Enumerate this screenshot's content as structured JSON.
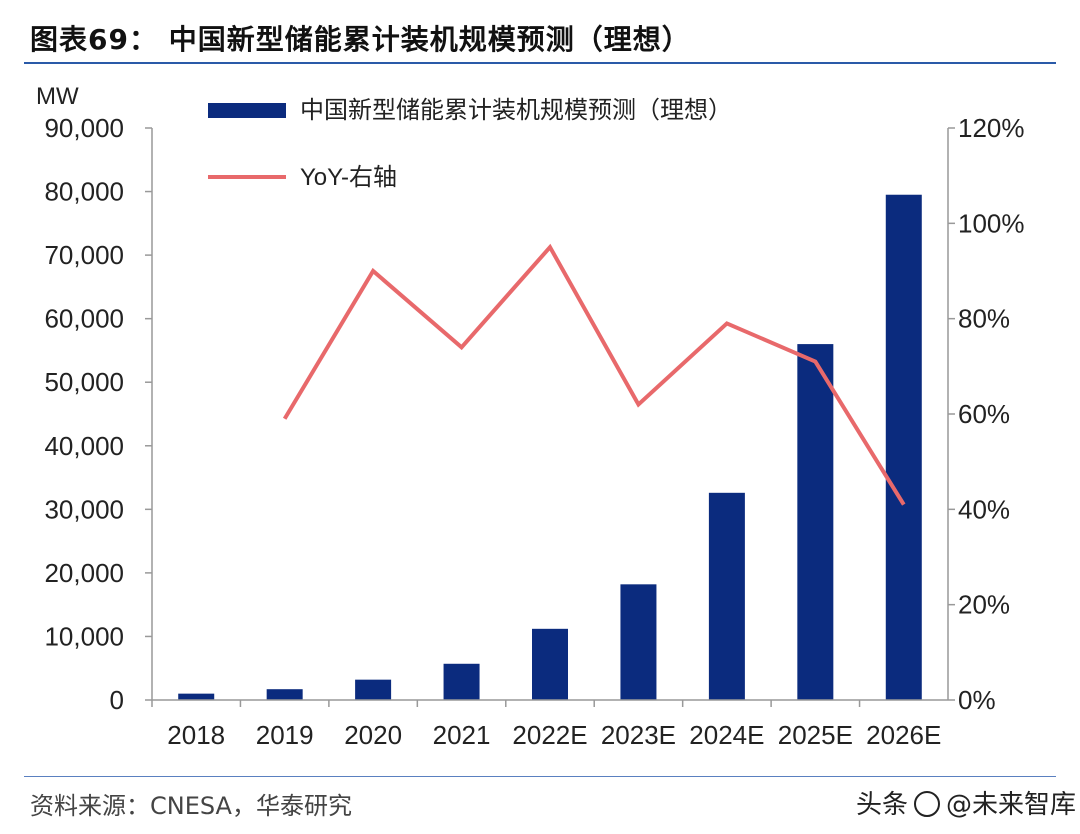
{
  "header": {
    "title": "图表69： 中国新型储能累计装机规模预测（理想）"
  },
  "footer": {
    "source": "资料来源：CNESA，华泰研究",
    "watermark_prefix": "头条",
    "watermark_brand": "@未来智库"
  },
  "colors": {
    "bar": "#0b2b7e",
    "line": "#e8696b",
    "rule": "#2a5aa8",
    "axis": "#999999"
  },
  "chart_data": {
    "type": "bar",
    "title": "中国新型储能累计装机规模预测（理想）",
    "categories": [
      "2018",
      "2019",
      "2020",
      "2021",
      "2022E",
      "2023E",
      "2024E",
      "2025E",
      "2026E"
    ],
    "series": [
      {
        "name": "中国新型储能累计装机规模预测（理想）",
        "axis": "left",
        "type": "bar",
        "values": [
          1000,
          1700,
          3200,
          5700,
          11200,
          18200,
          32600,
          56000,
          79500
        ]
      },
      {
        "name": "YoY-右轴",
        "axis": "right",
        "type": "line",
        "values": [
          null,
          59,
          90,
          74,
          95,
          62,
          79,
          71,
          41
        ]
      }
    ],
    "ylabel": "MW",
    "ylim": [
      0,
      90000
    ],
    "yticks": [
      "0",
      "10,000",
      "20,000",
      "30,000",
      "40,000",
      "50,000",
      "60,000",
      "70,000",
      "80,000",
      "90,000"
    ],
    "y2lim": [
      0,
      120
    ],
    "y2ticks": [
      "0%",
      "20%",
      "40%",
      "60%",
      "80%",
      "100%",
      "120%"
    ],
    "legend_position": "top-left",
    "grid": false
  }
}
